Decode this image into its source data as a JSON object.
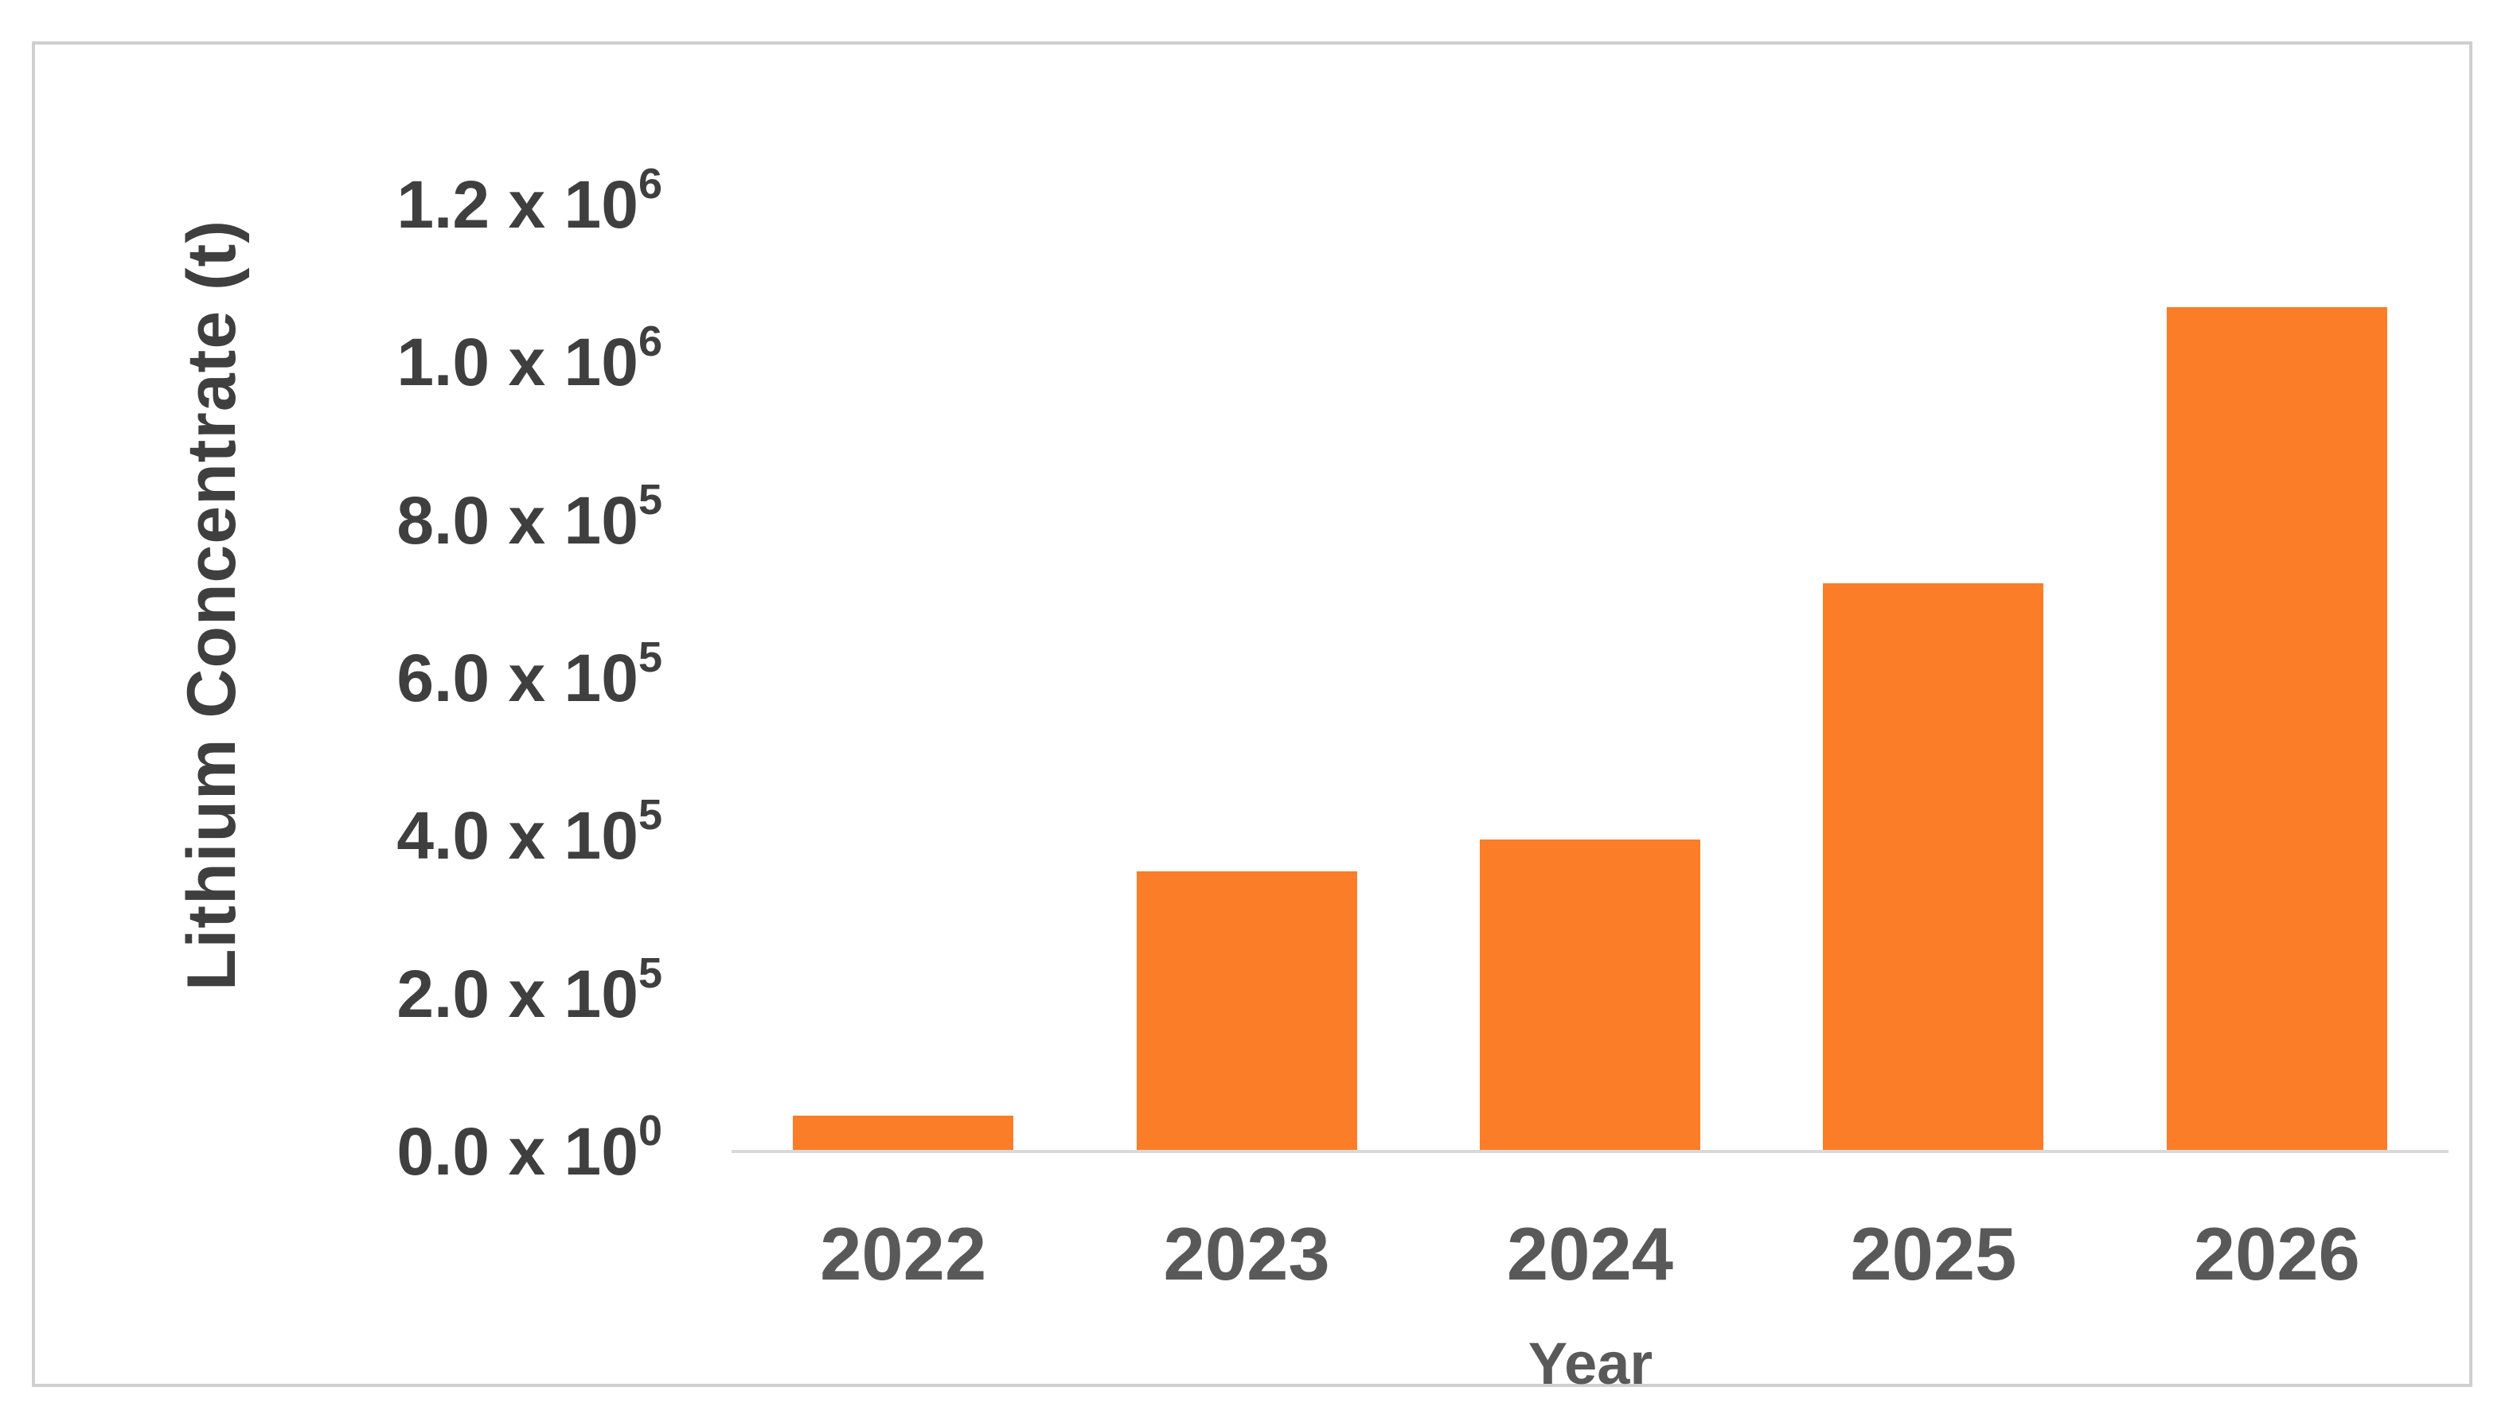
{
  "frame": {
    "border_color": "#cfcfcf",
    "background_color": "#ffffff"
  },
  "chart_data": {
    "type": "bar",
    "title": "",
    "xlabel": "Year",
    "ylabel": "Lithium Concentrate (t)",
    "categories": [
      "2022",
      "2023",
      "2024",
      "2025",
      "2026"
    ],
    "values": [
      45000,
      355000,
      395000,
      720000,
      1070000
    ],
    "ylim": [
      0,
      1200000
    ],
    "ytick_interval": 200000,
    "yticks": [
      {
        "value": 0,
        "mantissa": "0.0 x 10",
        "exponent": "0",
        "label": "0.0 x 10^0"
      },
      {
        "value": 200000,
        "mantissa": "2.0 x 10",
        "exponent": "5",
        "label": "2.0 x 10^5"
      },
      {
        "value": 400000,
        "mantissa": "4.0 x 10",
        "exponent": "5",
        "label": "4.0 x 10^5"
      },
      {
        "value": 600000,
        "mantissa": "6.0 x 10",
        "exponent": "5",
        "label": "6.0 x 10^5"
      },
      {
        "value": 800000,
        "mantissa": "8.0 x 10",
        "exponent": "5",
        "label": "8.0 x 10^5"
      },
      {
        "value": 1000000,
        "mantissa": "1.0 x 10",
        "exponent": "6",
        "label": "1.0 x 10^6"
      },
      {
        "value": 1200000,
        "mantissa": "1.2 x 10",
        "exponent": "6",
        "label": "1.2 x 10^6"
      }
    ],
    "grid": false,
    "legend": false,
    "bar_color": "#FB7D27",
    "axis_line_color": "#d9d9d9",
    "ytick_text_color": "#3f3f3f",
    "xtick_text_color": "#595959"
  }
}
